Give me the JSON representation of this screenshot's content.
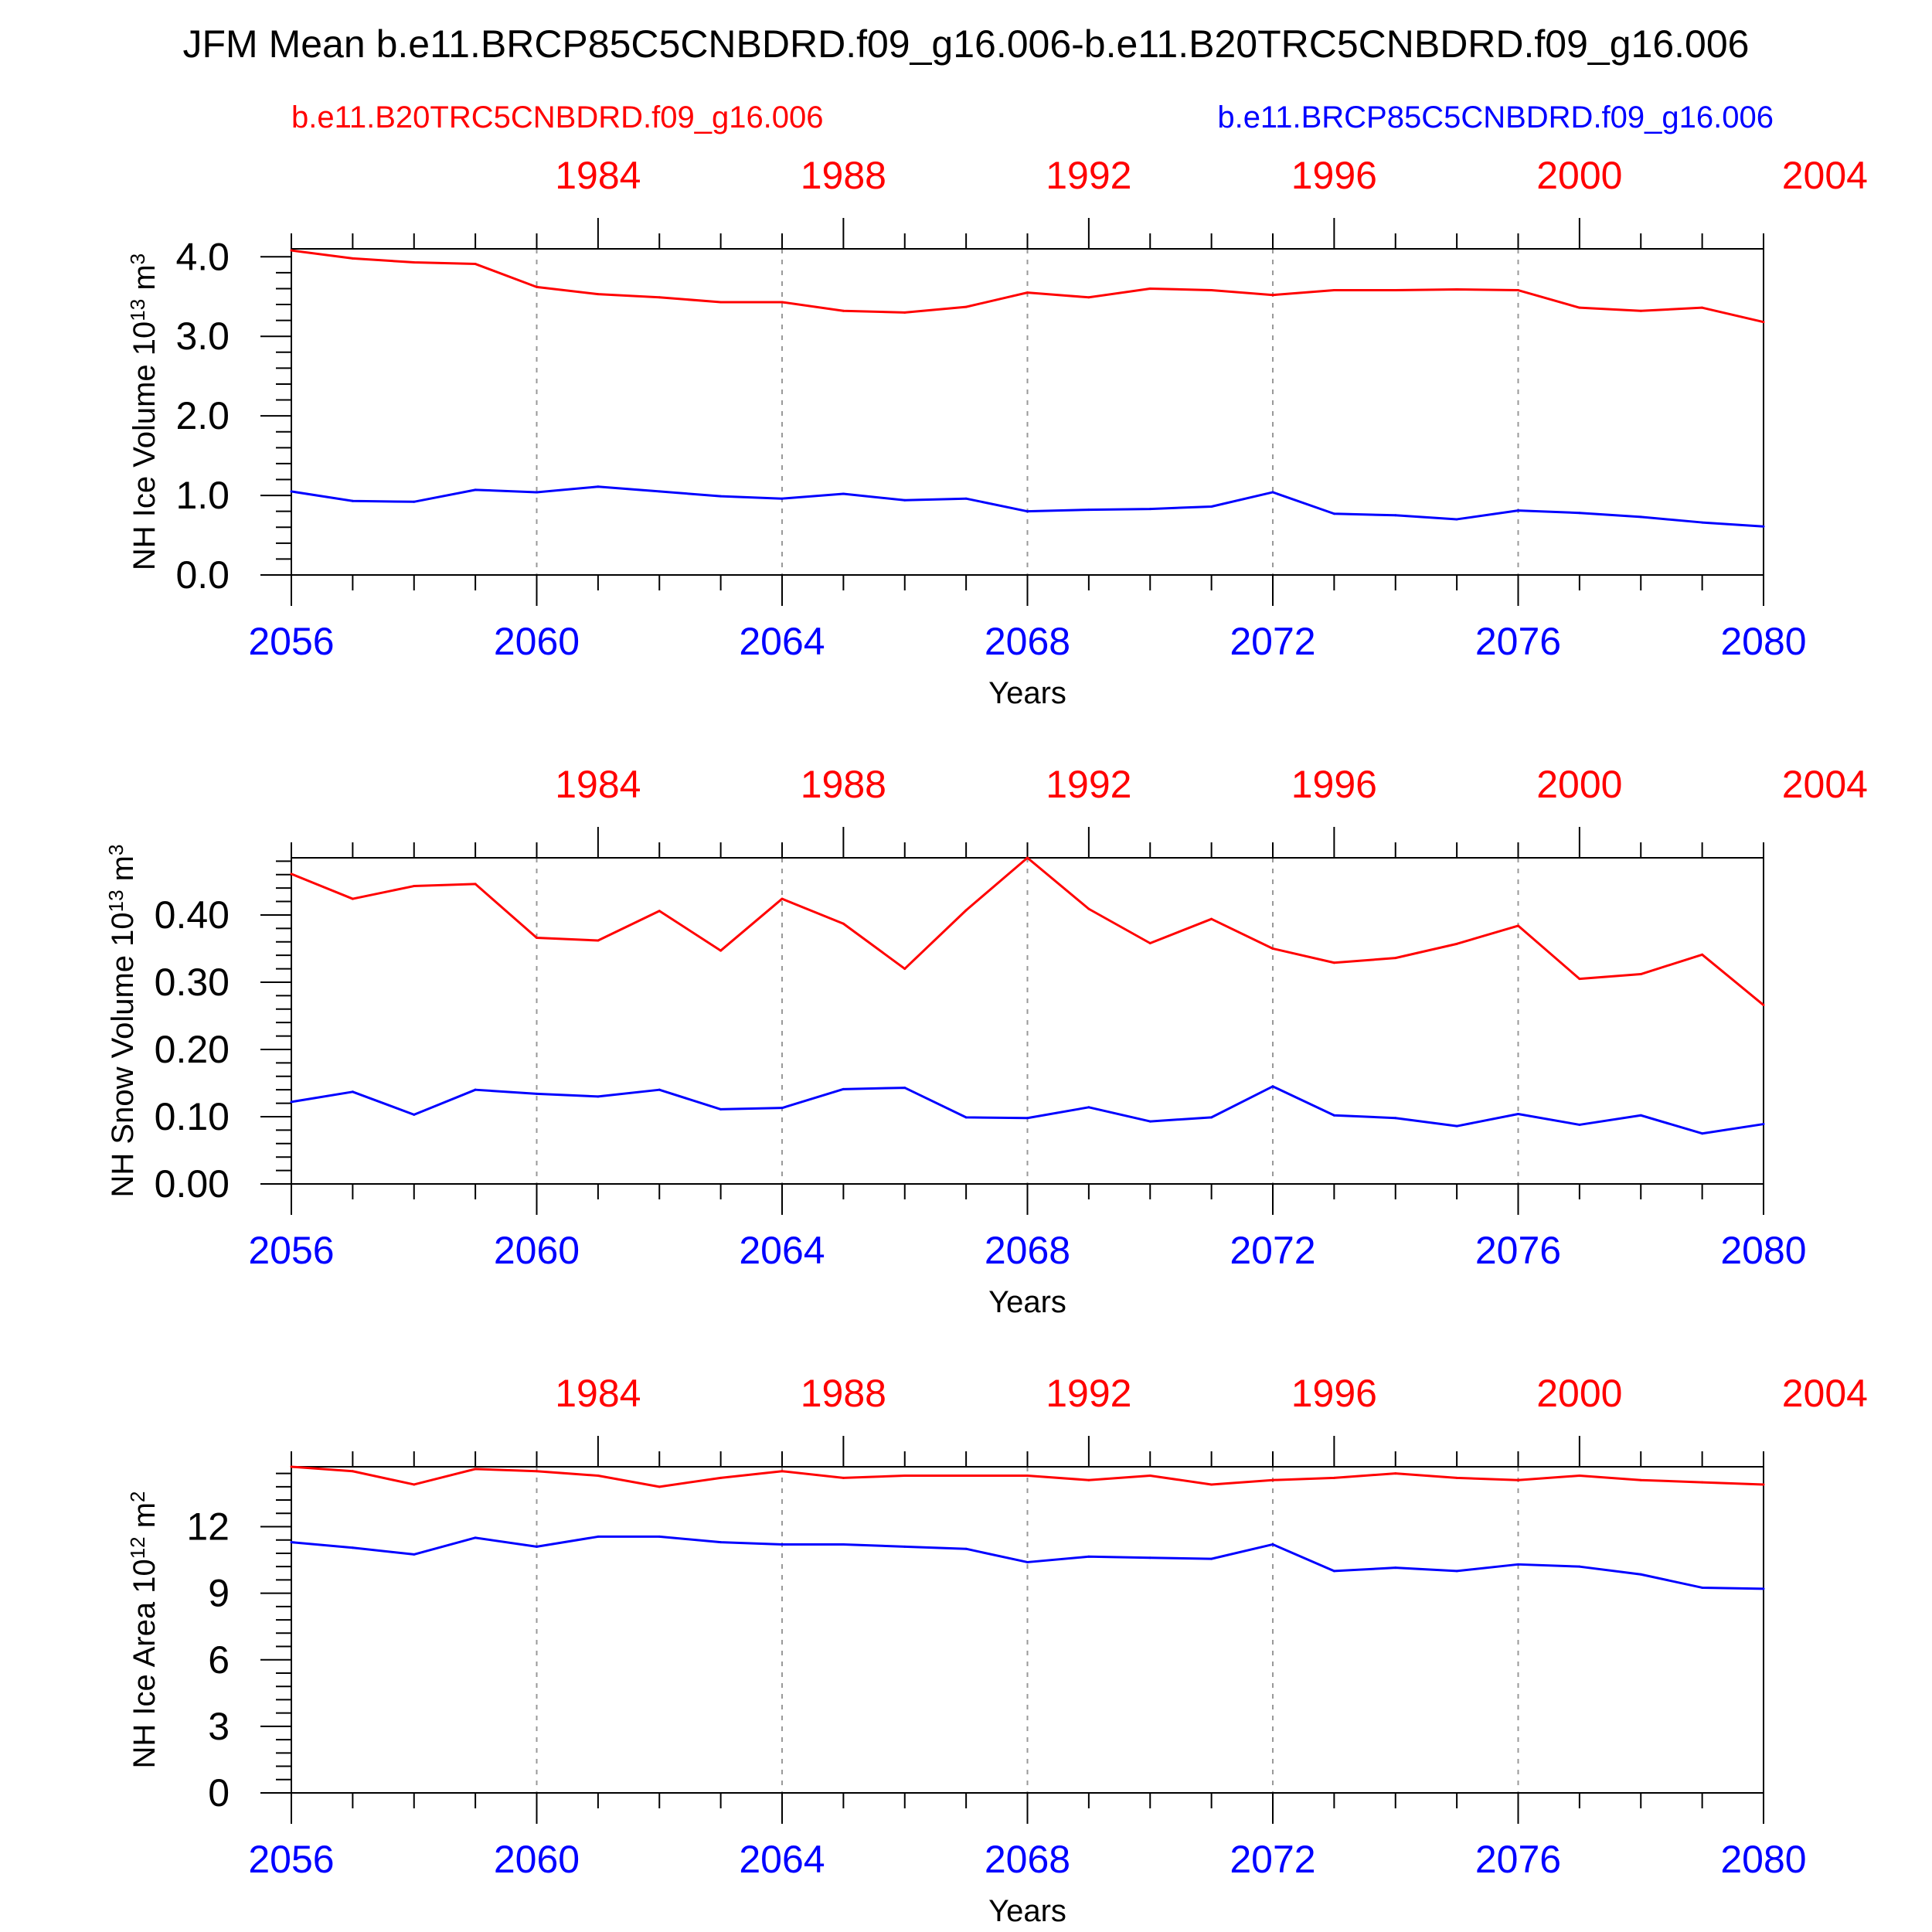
{
  "title": "JFM Mean b.e11.BRCP85C5CNBDRD.f09_g16.006-b.e11.B20TRC5CNBDRD.f09_g16.006",
  "legend": {
    "red_label": "b.e11.B20TRC5CNBDRD.f09_g16.006",
    "blue_label": "b.e11.BRCP85C5CNBDRD.f09_g16.006",
    "red_color": "#ff0000",
    "blue_color": "#0000ff"
  },
  "chart_data": [
    {
      "type": "line",
      "ylabel": "NH Ice Volume 10",
      "ylabel_exponent": "13",
      "ylabel_unit": "m",
      "ylabel_unit_exponent": "3",
      "xlabel": "Years",
      "ylim": [
        0,
        4.1
      ],
      "yticks": [
        0.0,
        1.0,
        2.0,
        3.0,
        4.0
      ],
      "ytick_labels": [
        "0.0",
        "1.0",
        "2.0",
        "3.0",
        "4.0"
      ],
      "xlim": [
        2056,
        2080
      ],
      "bottom_ticks": [
        2056,
        2060,
        2064,
        2068,
        2072,
        2076,
        2080
      ],
      "top_ticks": [
        1984,
        1988,
        1992,
        1996,
        2000,
        2004
      ],
      "x_offset_top": 77,
      "x": [
        2056,
        2057,
        2058,
        2059,
        2060,
        2061,
        2062,
        2063,
        2064,
        2065,
        2066,
        2067,
        2068,
        2069,
        2070,
        2071,
        2072,
        2073,
        2074,
        2075,
        2076,
        2077,
        2078,
        2079,
        2080
      ],
      "series": [
        {
          "name": "b.e11.B20TRC5CNBDRD.f09_g16.006",
          "color": "#ff0000",
          "values": [
            4.08,
            3.98,
            3.93,
            3.91,
            3.62,
            3.53,
            3.49,
            3.43,
            3.43,
            3.32,
            3.3,
            3.37,
            3.55,
            3.49,
            3.6,
            3.58,
            3.52,
            3.58,
            3.58,
            3.59,
            3.58,
            3.36,
            3.32,
            3.36,
            3.18
          ]
        },
        {
          "name": "b.e11.BRCP85C5CNBDRD.f09_g16.006",
          "color": "#0000ff",
          "values": [
            1.05,
            0.93,
            0.92,
            1.07,
            1.04,
            1.11,
            1.05,
            0.99,
            0.96,
            1.02,
            0.94,
            0.96,
            0.8,
            0.82,
            0.83,
            0.86,
            1.04,
            0.77,
            0.75,
            0.7,
            0.81,
            0.78,
            0.73,
            0.66,
            0.61
          ]
        }
      ]
    },
    {
      "type": "line",
      "ylabel": "NH Snow Volume 10",
      "ylabel_exponent": "13",
      "ylabel_unit": "m",
      "ylabel_unit_exponent": "3",
      "xlabel": "Years",
      "ylim": [
        0,
        0.485
      ],
      "yticks": [
        0.0,
        0.1,
        0.2,
        0.3,
        0.4
      ],
      "ytick_labels": [
        "0.00",
        "0.10",
        "0.20",
        "0.30",
        "0.40"
      ],
      "xlim": [
        2056,
        2080
      ],
      "bottom_ticks": [
        2056,
        2060,
        2064,
        2068,
        2072,
        2076,
        2080
      ],
      "top_ticks": [
        1984,
        1988,
        1992,
        1996,
        2000,
        2004
      ],
      "x_offset_top": 77,
      "x": [
        2056,
        2057,
        2058,
        2059,
        2060,
        2061,
        2062,
        2063,
        2064,
        2065,
        2066,
        2067,
        2068,
        2069,
        2070,
        2071,
        2072,
        2073,
        2074,
        2075,
        2076,
        2077,
        2078,
        2079,
        2080
      ],
      "series": [
        {
          "name": "b.e11.B20TRC5CNBDRD.f09_g16.006",
          "color": "#ff0000",
          "values": [
            0.461,
            0.424,
            0.443,
            0.446,
            0.366,
            0.362,
            0.406,
            0.347,
            0.424,
            0.387,
            0.32,
            0.407,
            0.485,
            0.409,
            0.358,
            0.394,
            0.35,
            0.329,
            0.336,
            0.357,
            0.384,
            0.305,
            0.312,
            0.341,
            0.266
          ]
        },
        {
          "name": "b.e11.BRCP85C5CNBDRD.f09_g16.006",
          "color": "#0000ff",
          "values": [
            0.122,
            0.137,
            0.103,
            0.14,
            0.134,
            0.13,
            0.14,
            0.111,
            0.113,
            0.141,
            0.143,
            0.099,
            0.098,
            0.114,
            0.093,
            0.099,
            0.145,
            0.102,
            0.098,
            0.086,
            0.104,
            0.088,
            0.102,
            0.075,
            0.089
          ]
        }
      ]
    },
    {
      "type": "line",
      "ylabel": "NH Ice Area 10",
      "ylabel_exponent": "12",
      "ylabel_unit": "m",
      "ylabel_unit_exponent": "2",
      "xlabel": "Years",
      "ylim": [
        0,
        14.7
      ],
      "yticks": [
        0,
        3,
        6,
        9,
        12
      ],
      "ytick_labels": [
        "0",
        "3",
        "6",
        "9",
        "12"
      ],
      "xlim": [
        2056,
        2080
      ],
      "bottom_ticks": [
        2056,
        2060,
        2064,
        2068,
        2072,
        2076,
        2080
      ],
      "top_ticks": [
        1984,
        1988,
        1992,
        1996,
        2000,
        2004
      ],
      "x_offset_top": 77,
      "x": [
        2056,
        2057,
        2058,
        2059,
        2060,
        2061,
        2062,
        2063,
        2064,
        2065,
        2066,
        2067,
        2068,
        2069,
        2070,
        2071,
        2072,
        2073,
        2074,
        2075,
        2076,
        2077,
        2078,
        2079,
        2080
      ],
      "series": [
        {
          "name": "b.e11.B20TRC5CNBDRD.f09_g16.006",
          "color": "#ff0000",
          "values": [
            14.7,
            14.5,
            13.9,
            14.6,
            14.5,
            14.3,
            13.8,
            14.2,
            14.5,
            14.2,
            14.3,
            14.3,
            14.3,
            14.1,
            14.3,
            13.9,
            14.1,
            14.2,
            14.4,
            14.2,
            14.1,
            14.3,
            14.1,
            14.0,
            13.9
          ]
        },
        {
          "name": "b.e11.BRCP85C5CNBDRD.f09_g16.006",
          "color": "#0000ff",
          "values": [
            11.3,
            11.05,
            10.75,
            11.5,
            11.1,
            11.55,
            11.55,
            11.3,
            11.2,
            11.2,
            11.1,
            11.0,
            10.4,
            10.65,
            10.6,
            10.55,
            11.2,
            10.0,
            10.15,
            10.0,
            10.3,
            10.2,
            9.85,
            9.25,
            9.2
          ]
        }
      ]
    }
  ]
}
